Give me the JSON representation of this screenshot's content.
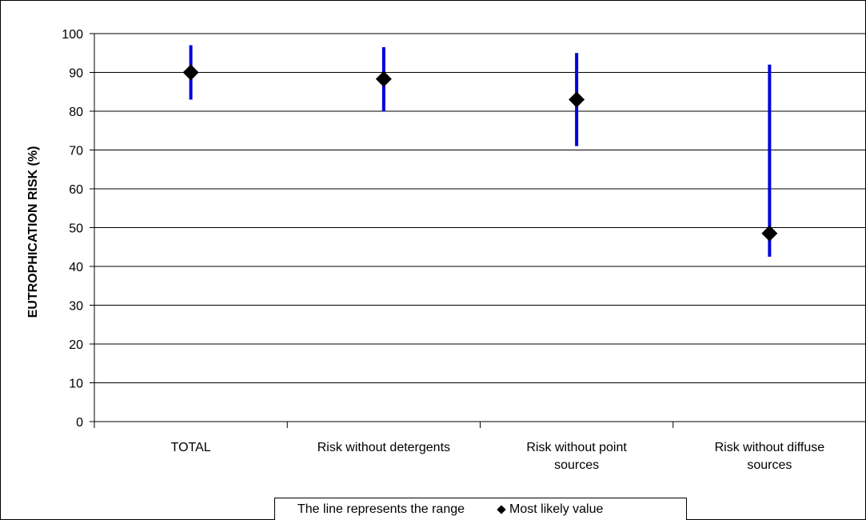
{
  "chart_data": {
    "type": "scatter",
    "title": "",
    "xlabel": "",
    "ylabel": "EUTROPHICATION RISK (%)",
    "ylim": [
      0,
      100
    ],
    "yticks": [
      0,
      10,
      20,
      30,
      40,
      50,
      60,
      70,
      80,
      90,
      100
    ],
    "grid": true,
    "categories": [
      [
        "TOTAL"
      ],
      [
        "Risk without detergents"
      ],
      [
        "Risk without point",
        "sources"
      ],
      [
        "Risk without diffuse",
        "sources"
      ]
    ],
    "series": [
      {
        "name": "The line represents the range",
        "type": "range",
        "color": "#0000dd",
        "low": [
          83,
          80,
          71,
          42.5
        ],
        "high": [
          97,
          96.5,
          95,
          92
        ]
      },
      {
        "name": "Most likely value",
        "type": "marker",
        "marker": "diamond-icon",
        "color": "#000000",
        "values": [
          90,
          88.3,
          83,
          48.5
        ]
      }
    ],
    "legend": {
      "position": "bottom",
      "range_label": "The line represents the range",
      "marker_label": "Most likely value"
    }
  }
}
